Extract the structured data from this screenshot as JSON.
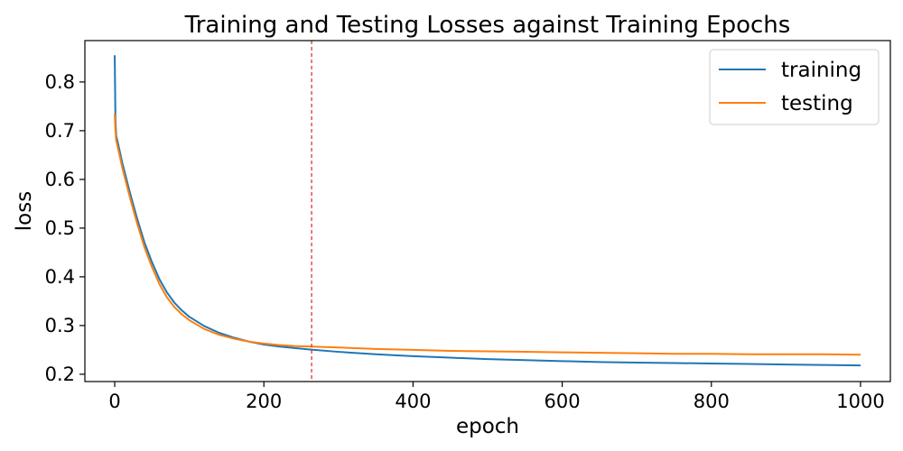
{
  "chart_data": {
    "type": "line",
    "title": "Training and Testing Losses against Training Epochs",
    "xlabel": "epoch",
    "ylabel": "loss",
    "xlim": [
      -40,
      1040
    ],
    "ylim": [
      0.185,
      0.885
    ],
    "xticks": [
      0,
      200,
      400,
      600,
      800,
      1000
    ],
    "xtick_labels": [
      "0",
      "200",
      "400",
      "600",
      "800",
      "1000"
    ],
    "yticks": [
      0.2,
      0.3,
      0.4,
      0.5,
      0.6,
      0.7,
      0.8
    ],
    "ytick_labels": [
      "0.2",
      "0.3",
      "0.4",
      "0.5",
      "0.6",
      "0.7",
      "0.8"
    ],
    "grid": false,
    "legend": {
      "position": "top-right",
      "entries": [
        "training",
        "testing"
      ]
    },
    "vline": {
      "x": 264,
      "color": "#d62728",
      "style": "dashed"
    },
    "series": [
      {
        "name": "training",
        "color": "#1f77b4",
        "x": [
          0,
          1,
          2,
          5,
          10,
          20,
          30,
          40,
          50,
          60,
          70,
          80,
          90,
          100,
          120,
          140,
          160,
          180,
          200,
          220,
          240,
          260,
          300,
          350,
          400,
          450,
          500,
          550,
          600,
          650,
          700,
          750,
          800,
          850,
          900,
          950,
          1000
        ],
        "y": [
          0.855,
          0.72,
          0.69,
          0.67,
          0.635,
          0.575,
          0.52,
          0.47,
          0.43,
          0.395,
          0.368,
          0.347,
          0.331,
          0.318,
          0.299,
          0.285,
          0.275,
          0.267,
          0.261,
          0.257,
          0.254,
          0.251,
          0.246,
          0.241,
          0.237,
          0.234,
          0.231,
          0.229,
          0.227,
          0.225,
          0.224,
          0.223,
          0.222,
          0.221,
          0.22,
          0.219,
          0.218
        ]
      },
      {
        "name": "testing",
        "color": "#ff7f0e",
        "x": [
          0,
          1,
          2,
          5,
          10,
          20,
          30,
          40,
          50,
          60,
          70,
          80,
          90,
          100,
          120,
          140,
          160,
          180,
          200,
          220,
          240,
          260,
          300,
          350,
          400,
          450,
          500,
          550,
          600,
          650,
          700,
          750,
          800,
          850,
          900,
          950,
          1000
        ],
        "y": [
          0.735,
          0.7,
          0.68,
          0.66,
          0.625,
          0.565,
          0.51,
          0.46,
          0.42,
          0.385,
          0.358,
          0.338,
          0.323,
          0.311,
          0.293,
          0.281,
          0.273,
          0.267,
          0.263,
          0.26,
          0.258,
          0.257,
          0.255,
          0.252,
          0.25,
          0.248,
          0.247,
          0.246,
          0.245,
          0.244,
          0.243,
          0.242,
          0.242,
          0.241,
          0.241,
          0.241,
          0.24
        ]
      }
    ]
  }
}
